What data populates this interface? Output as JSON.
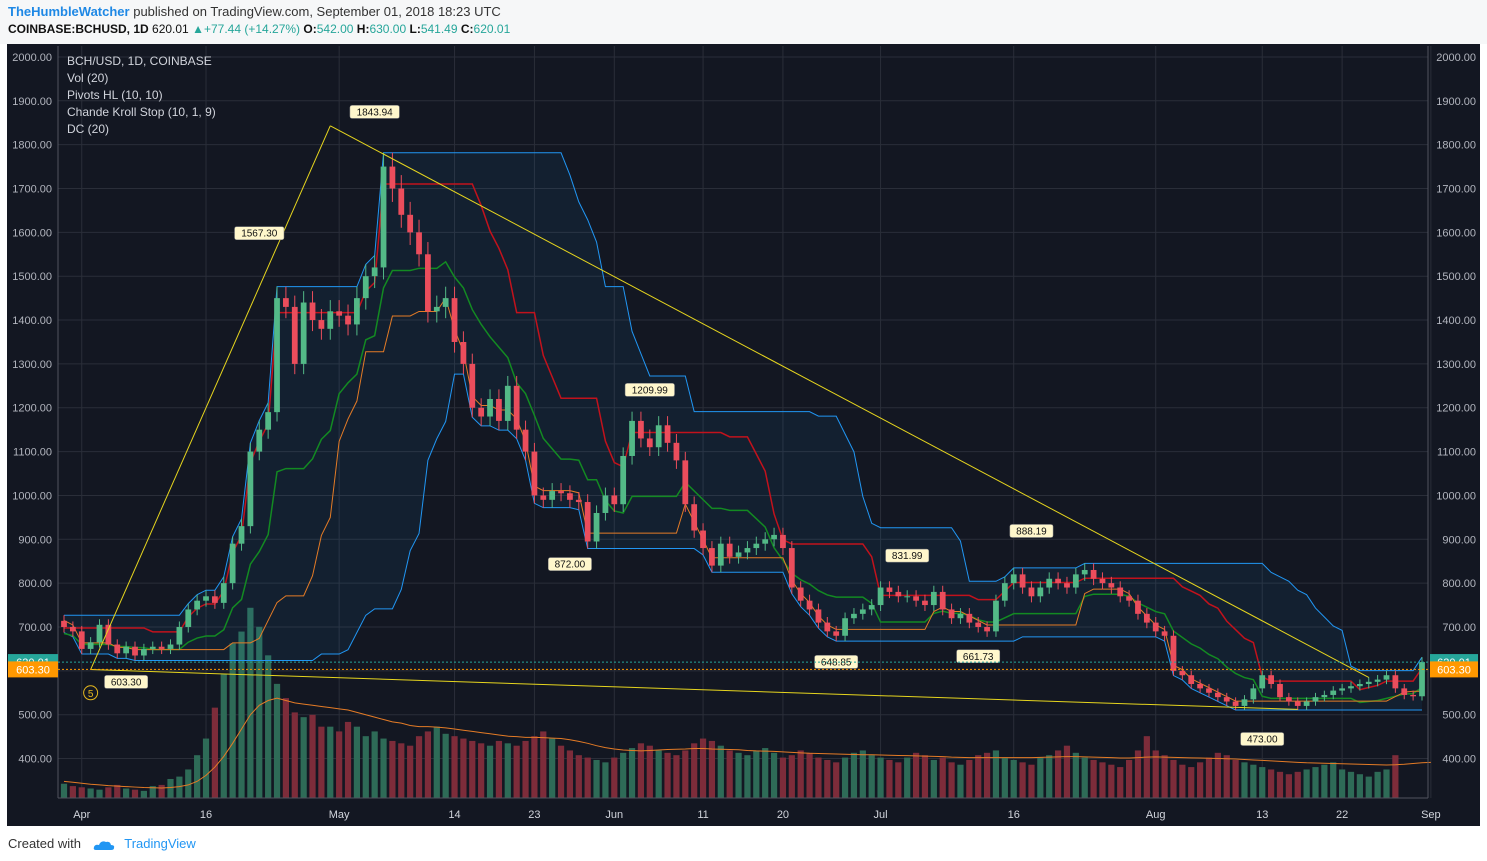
{
  "header": {
    "author": "TheHumbleWatcher",
    "published": "published on TradingView.com, September 01, 2018 18:23 UTC",
    "symbol": "COINBASE:BCHUSD, 1D",
    "last": "620.01",
    "change": "+77.44 (+14.27%)",
    "o_label": "O:",
    "o": "542.00",
    "h_label": "H:",
    "h": "630.00",
    "l_label": "L:",
    "l": "541.49",
    "c_label": "C:",
    "c": "620.01"
  },
  "legend": {
    "title": "BCH/USD, 1D, COINBASE",
    "items": [
      "Vol (20)",
      "Pivots HL (10, 10)",
      "Chande Kroll Stop (10, 1, 9)",
      "DC (20)"
    ]
  },
  "footer": {
    "created": "Created with",
    "brand": "TradingView"
  },
  "colors": {
    "background": "#131722",
    "up": "#53b987",
    "down": "#eb4d5c",
    "donchian": "#2196f3",
    "trendline": "#e6d51e",
    "kroll_red": "#c2121c",
    "kroll_green": "#138a22",
    "kroll_orange": "#e47b26"
  },
  "chart_data": {
    "type": "candlestick",
    "ylim": [
      310,
      2025
    ],
    "y_ticks": [
      "400.00",
      "500.00",
      "600.00",
      "700.00",
      "800.00",
      "900.00",
      "1000.00",
      "1100.00",
      "1200.00",
      "1300.00",
      "1400.00",
      "1500.00",
      "1600.00",
      "1700.00",
      "1800.00",
      "1900.00",
      "2000.00"
    ],
    "x_labels": [
      {
        "label": "Apr",
        "day": 2
      },
      {
        "label": "16",
        "day": 16
      },
      {
        "label": "May",
        "day": 31
      },
      {
        "label": "14",
        "day": 44
      },
      {
        "label": "23",
        "day": 53
      },
      {
        "label": "Jun",
        "day": 62
      },
      {
        "label": "11",
        "day": 72
      },
      {
        "label": "20",
        "day": 81
      },
      {
        "label": "Jul",
        "day": 92
      },
      {
        "label": "16",
        "day": 107
      },
      {
        "label": "Aug",
        "day": 123
      },
      {
        "label": "13",
        "day": 135
      },
      {
        "label": "22",
        "day": 144
      },
      {
        "label": "Sep",
        "day": 154
      }
    ],
    "price_badges": [
      {
        "label": "620.01",
        "price": 620.01,
        "color": "#26a69a"
      },
      {
        "label": "603.30",
        "price": 603.3,
        "color": "#ff9800"
      }
    ],
    "pivot_labels": [
      {
        "label": "1567.30",
        "day": 22,
        "price": 1567.3,
        "pos": "above"
      },
      {
        "label": "1843.94",
        "day": 35,
        "price": 1843.94,
        "pos": "above"
      },
      {
        "label": "1209.99",
        "day": 66,
        "price": 1209.99,
        "pos": "above"
      },
      {
        "label": "831.99",
        "day": 95,
        "price": 831.99,
        "pos": "above"
      },
      {
        "label": "888.19",
        "day": 109,
        "price": 888.19,
        "pos": "above"
      },
      {
        "label": "603.30",
        "day": 7,
        "price": 603.3,
        "pos": "below"
      },
      {
        "label": "872.00",
        "day": 57,
        "price": 872,
        "pos": "below"
      },
      {
        "label": "648.85",
        "day": 87,
        "price": 648.85,
        "pos": "below"
      },
      {
        "label": "661.73",
        "day": 103,
        "price": 661.73,
        "pos": "below"
      },
      {
        "label": "473.00",
        "day": 135,
        "price": 473,
        "pos": "below"
      }
    ],
    "wave_label": {
      "label": "5",
      "day": 3,
      "price": 550
    },
    "trendlines": [
      [
        {
          "day": 3,
          "price": 603
        },
        {
          "day": 30,
          "price": 1843
        }
      ],
      [
        {
          "day": 30,
          "price": 1843
        },
        {
          "day": 147,
          "price": 585
        }
      ],
      [
        {
          "day": 3,
          "price": 603
        },
        {
          "day": 139,
          "price": 512
        }
      ]
    ],
    "closes": [
      700,
      690,
      650,
      665,
      705,
      660,
      640,
      655,
      635,
      650,
      655,
      650,
      660,
      700,
      740,
      760,
      770,
      755,
      800,
      890,
      930,
      1100,
      1150,
      1190,
      1450,
      1430,
      1300,
      1440,
      1400,
      1380,
      1420,
      1410,
      1390,
      1450,
      1500,
      1520,
      1750,
      1700,
      1640,
      1600,
      1550,
      1420,
      1430,
      1450,
      1350,
      1300,
      1200,
      1180,
      1220,
      1170,
      1250,
      1150,
      1100,
      1000,
      990,
      1010,
      1005,
      990,
      985,
      895,
      960,
      1000,
      980,
      1090,
      1170,
      1130,
      1110,
      1160,
      1120,
      1080,
      980,
      920,
      880,
      840,
      890,
      860,
      870,
      880,
      890,
      900,
      910,
      880,
      790,
      760,
      740,
      710,
      690,
      680,
      720,
      730,
      740,
      750,
      790,
      780,
      770,
      770,
      760,
      750,
      780,
      740,
      720,
      730,
      710,
      700,
      690,
      760,
      800,
      820,
      790,
      770,
      790,
      810,
      800,
      790,
      820,
      830,
      810,
      800,
      790,
      770,
      760,
      730,
      710,
      690,
      680,
      600,
      590,
      570,
      560,
      550,
      540,
      530,
      520,
      535,
      560,
      590,
      570,
      540,
      530,
      520,
      530,
      540,
      545,
      555,
      560,
      565,
      570,
      575,
      580,
      590,
      560,
      545,
      542,
      620.01
    ],
    "volume": {
      "ylim": [
        0,
        900
      ],
      "values": [
        60,
        50,
        45,
        40,
        35,
        45,
        55,
        40,
        35,
        30,
        50,
        55,
        80,
        90,
        120,
        180,
        250,
        380,
        520,
        650,
        700,
        800,
        720,
        600,
        480,
        420,
        360,
        340,
        350,
        300,
        300,
        280,
        320,
        300,
        260,
        280,
        250,
        240,
        230,
        220,
        260,
        280,
        300,
        270,
        260,
        250,
        240,
        230,
        220,
        240,
        230,
        220,
        240,
        260,
        280,
        250,
        220,
        200,
        180,
        170,
        160,
        150,
        170,
        190,
        210,
        230,
        220,
        200,
        190,
        180,
        200,
        230,
        250,
        240,
        220,
        200,
        190,
        180,
        200,
        210,
        190,
        170,
        180,
        200,
        190,
        170,
        160,
        150,
        170,
        190,
        200,
        180,
        170,
        160,
        150,
        170,
        190,
        180,
        160,
        170,
        150,
        140,
        160,
        180,
        190,
        200,
        170,
        160,
        150,
        140,
        170,
        180,
        200,
        220,
        190,
        170,
        160,
        150,
        140,
        130,
        160,
        200,
        260,
        200,
        180,
        160,
        140,
        130,
        150,
        170,
        190,
        180,
        160,
        150,
        140,
        130,
        120,
        110,
        100,
        110,
        120,
        130,
        140,
        150,
        120,
        110,
        100,
        90,
        110,
        120,
        180
      ],
      "ma_values": [
        70,
        66,
        62,
        58,
        55,
        52,
        50,
        48,
        46,
        44,
        43,
        42,
        44,
        48,
        55,
        70,
        95,
        130,
        175,
        230,
        290,
        350,
        390,
        410,
        420,
        410,
        400,
        395,
        390,
        385,
        380,
        375,
        370,
        360,
        350,
        340,
        330,
        320,
        315,
        305,
        300,
        300,
        298,
        295,
        290,
        285,
        280,
        275,
        270,
        265,
        260,
        258,
        255,
        255,
        254,
        252,
        250,
        245,
        238,
        230,
        220,
        212,
        206,
        202,
        200,
        198,
        200,
        202,
        204,
        205,
        206,
        208,
        208,
        206,
        205,
        204,
        203,
        200,
        198,
        197,
        196,
        194,
        192,
        190,
        188,
        187,
        186,
        185,
        184,
        183,
        182,
        182,
        181,
        180,
        179,
        178,
        177,
        176,
        175,
        174,
        172,
        171,
        170,
        170,
        170,
        170,
        170,
        170,
        170,
        170,
        171,
        172,
        173,
        174,
        174,
        173,
        172,
        171,
        170,
        168,
        168,
        170,
        172,
        173,
        172,
        171,
        170,
        169,
        168,
        167,
        166,
        165,
        164,
        162,
        160,
        158,
        156,
        154,
        152,
        150,
        148,
        147,
        146,
        145,
        144,
        143,
        142,
        141,
        140,
        139,
        140,
        142,
        145,
        148,
        150
      ]
    }
  }
}
